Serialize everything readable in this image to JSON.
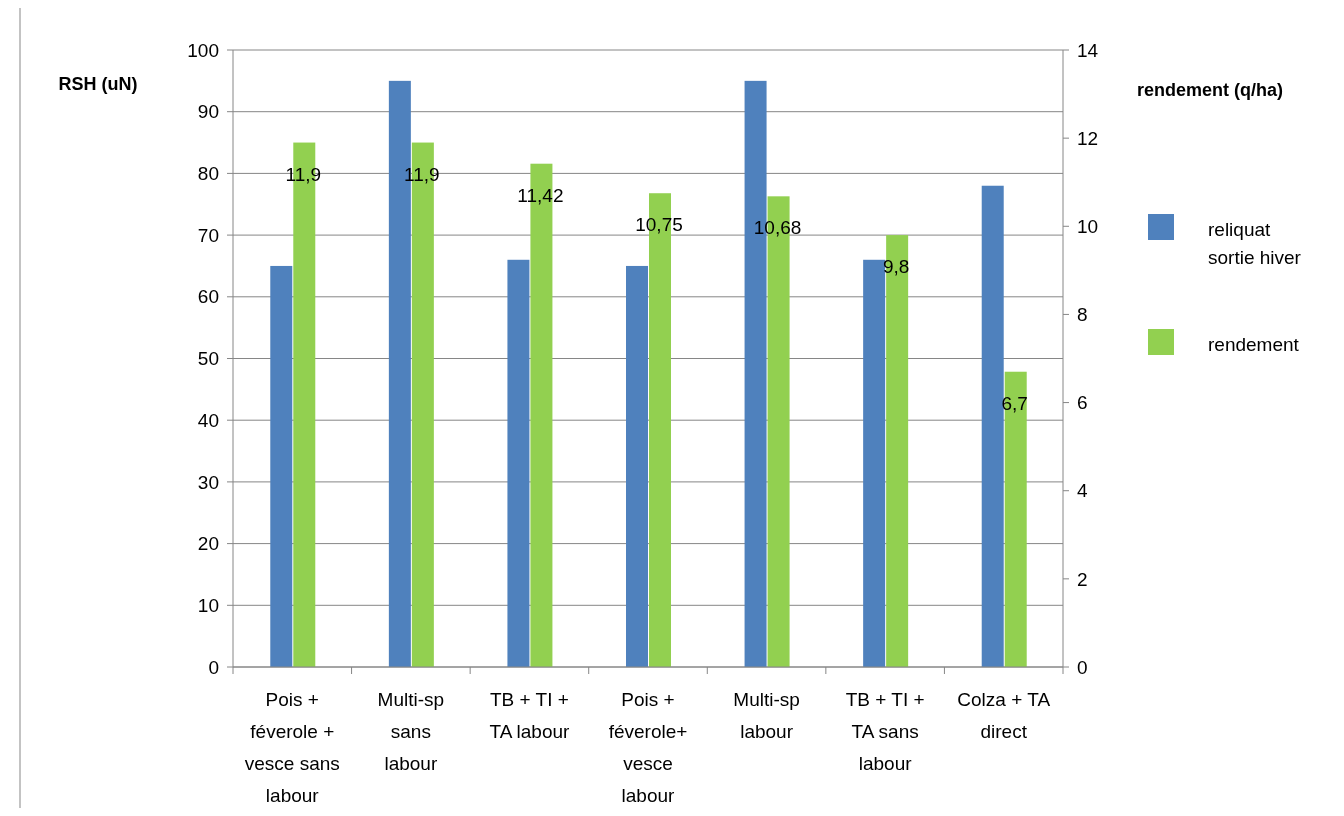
{
  "chart_data": {
    "type": "bar",
    "ylabel": "RSH (uN)",
    "y2label": "rendement (q/ha)",
    "categories": [
      "Pois + féverole + vesce sans labour",
      "Multi-sp sans labour",
      "TB + TI + TA labour",
      "Pois + féverole+ vesce labour",
      "Multi-sp labour",
      "TB + TI + TA sans labour",
      "Colza + TA direct"
    ],
    "series": [
      {
        "name": "reliquat sortie hiver",
        "color": "#4f81bd",
        "values": [
          65,
          95,
          66,
          65,
          95,
          66,
          78
        ]
      },
      {
        "name": "rendement",
        "color": "#92d050",
        "axis": "y2",
        "values": [
          11.9,
          11.9,
          11.42,
          10.75,
          10.68,
          9.8,
          6.7
        ],
        "value_labels": [
          "11,9",
          "11,9",
          "11,42",
          "10,75",
          "10,68",
          "9,8",
          "6,7"
        ]
      }
    ],
    "ylim": [
      0,
      100
    ],
    "yticks": [
      0,
      10,
      20,
      30,
      40,
      50,
      60,
      70,
      80,
      90,
      100
    ],
    "y2lim": [
      0,
      14
    ],
    "y2ticks": [
      0,
      2,
      4,
      6,
      8,
      10,
      12,
      14
    ],
    "grid": "y",
    "legend": "right"
  }
}
